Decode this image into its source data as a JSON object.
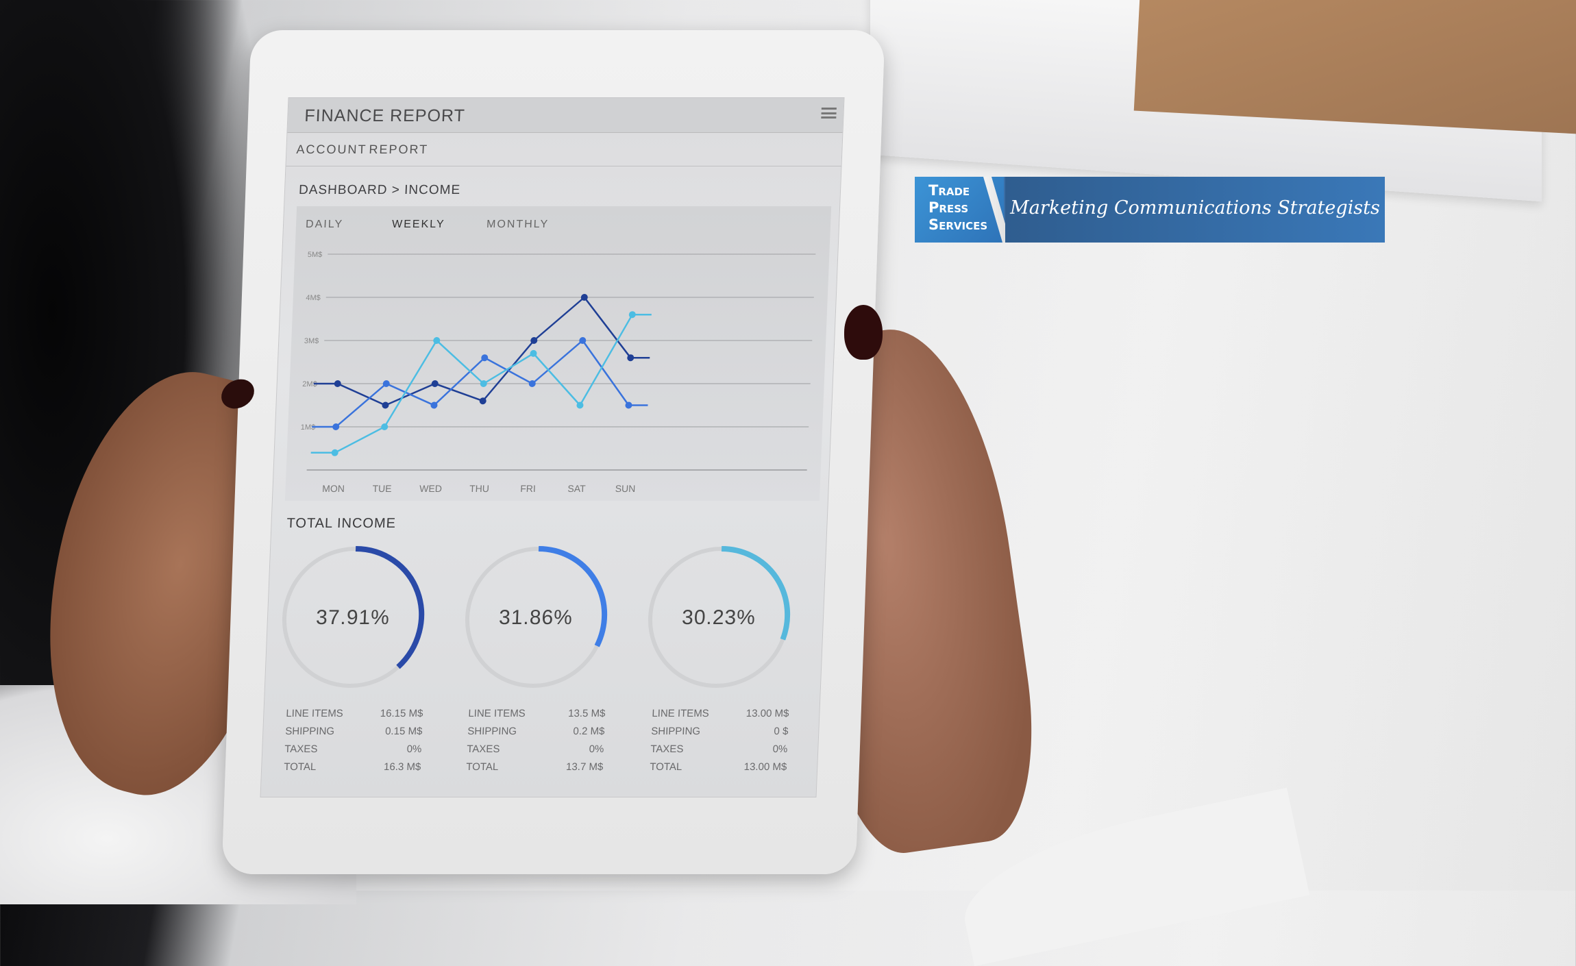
{
  "screen": {
    "title": "FINANCE REPORT",
    "menu_icon": "hamburger-icon",
    "tabs": [
      "ACCOUNT",
      "REPORT"
    ],
    "breadcrumb": "DASHBOARD > INCOME",
    "ranges": [
      "DAILY",
      "WEEKLY",
      "MONTHLY"
    ],
    "active_range": "WEEKLY",
    "section_title": "TOTAL INCOME"
  },
  "chart_data": {
    "type": "line",
    "categories": [
      "MON",
      "TUE",
      "WED",
      "THU",
      "FRI",
      "SAT",
      "SUN"
    ],
    "y_ticks": [
      "1M$",
      "2M$",
      "3M$",
      "4M$",
      "5M$"
    ],
    "ylim": [
      0,
      5
    ],
    "grid": true,
    "series": [
      {
        "color": "#1f3f95",
        "values": [
          2.0,
          1.5,
          2.0,
          1.6,
          3.0,
          4.0,
          2.6
        ]
      },
      {
        "color": "#3a73dc",
        "values": [
          1.0,
          2.0,
          1.5,
          2.6,
          2.0,
          3.0,
          1.5
        ]
      },
      {
        "color": "#4cbde3",
        "values": [
          0.4,
          1.0,
          3.0,
          2.0,
          2.7,
          1.5,
          3.6
        ]
      }
    ]
  },
  "income": [
    {
      "percent": 37.91,
      "label": "37.91%",
      "color": "#2a4aa8",
      "rows": [
        [
          "LINE ITEMS",
          "16.15 M$"
        ],
        [
          "SHIPPING",
          "0.15 M$"
        ],
        [
          "TAXES",
          "0%"
        ],
        [
          "TOTAL",
          "16.3 M$"
        ]
      ]
    },
    {
      "percent": 31.86,
      "label": "31.86%",
      "color": "#3f7ee6",
      "rows": [
        [
          "LINE ITEMS",
          "13.5 M$"
        ],
        [
          "SHIPPING",
          "0.2 M$"
        ],
        [
          "TAXES",
          "0%"
        ],
        [
          "TOTAL",
          "13.7 M$"
        ]
      ]
    },
    {
      "percent": 30.23,
      "label": "30.23%",
      "color": "#56b8dc",
      "rows": [
        [
          "LINE ITEMS",
          "13.00 M$"
        ],
        [
          "SHIPPING",
          "0 $"
        ],
        [
          "TAXES",
          "0%"
        ],
        [
          "TOTAL",
          "13.00 M$"
        ]
      ]
    }
  ],
  "logo": {
    "name_lines": [
      "Trade",
      "Press",
      "Services"
    ],
    "tagline": "Marketing Communications Strategists"
  }
}
